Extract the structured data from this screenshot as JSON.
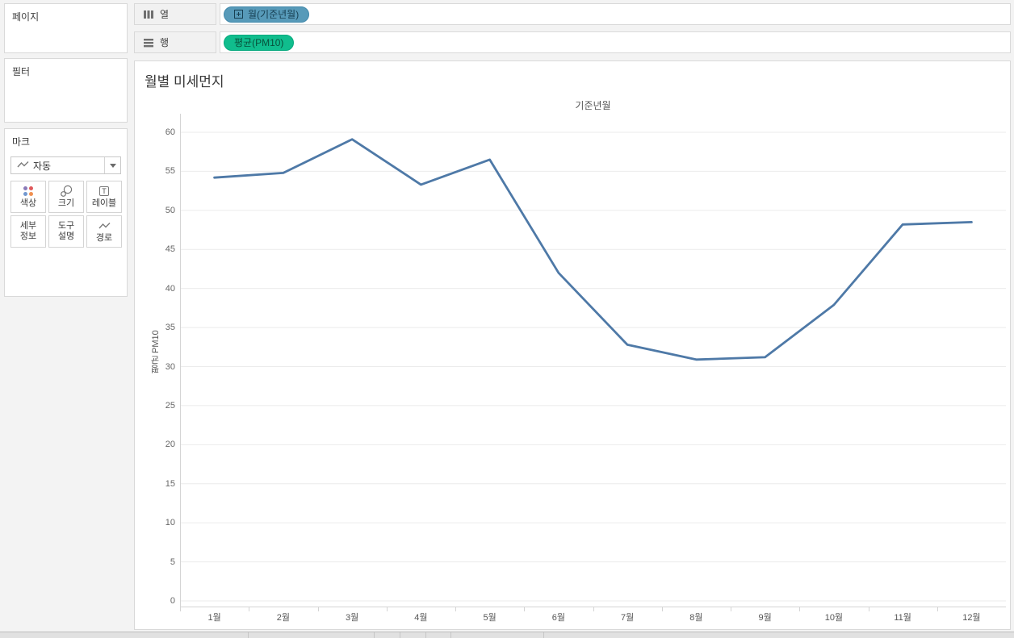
{
  "colors": {
    "pill_blue": "#579ab9",
    "pill_blue_border": "#4389ab",
    "pill_green": "#10bd8d",
    "pill_green_border": "#06a97d",
    "line": "#4e79a7",
    "gridline": "#ebebeb",
    "axis_line": "#d4d4d4",
    "marks_dot_colors": [
      "#8b7ab8",
      "#e0585b",
      "#7298d0",
      "#f09050"
    ]
  },
  "sidebar": {
    "pages_label": "페이지",
    "filters_label": "필터",
    "marks_label": "마크",
    "mark_type": "자동",
    "marks_buttons": {
      "color": "색상",
      "size": "크기",
      "label": "레이블",
      "detail_line1": "세부",
      "detail_line2": "정보",
      "tooltip_line1": "도구",
      "tooltip_line2": "설명",
      "path": "경로"
    }
  },
  "shelves": {
    "columns_label": "열",
    "rows_label": "행",
    "columns_pill": "월(기준년월)",
    "rows_pill": "평균(PM10)"
  },
  "chart_data": {
    "type": "line",
    "title": "월별 미세먼지",
    "pane_title": "기준년월",
    "ylabel": "평균 PM10",
    "xlabel": "",
    "categories": [
      "1월",
      "2월",
      "3월",
      "4월",
      "5월",
      "6월",
      "7월",
      "8월",
      "9월",
      "10월",
      "11월",
      "12월"
    ],
    "values": [
      54.2,
      54.8,
      59.1,
      53.3,
      56.5,
      42.0,
      32.8,
      30.9,
      31.2,
      37.9,
      48.2,
      48.5
    ],
    "ylim": [
      0,
      60
    ],
    "ytick_step": 5,
    "grid": true,
    "legend": "none"
  }
}
